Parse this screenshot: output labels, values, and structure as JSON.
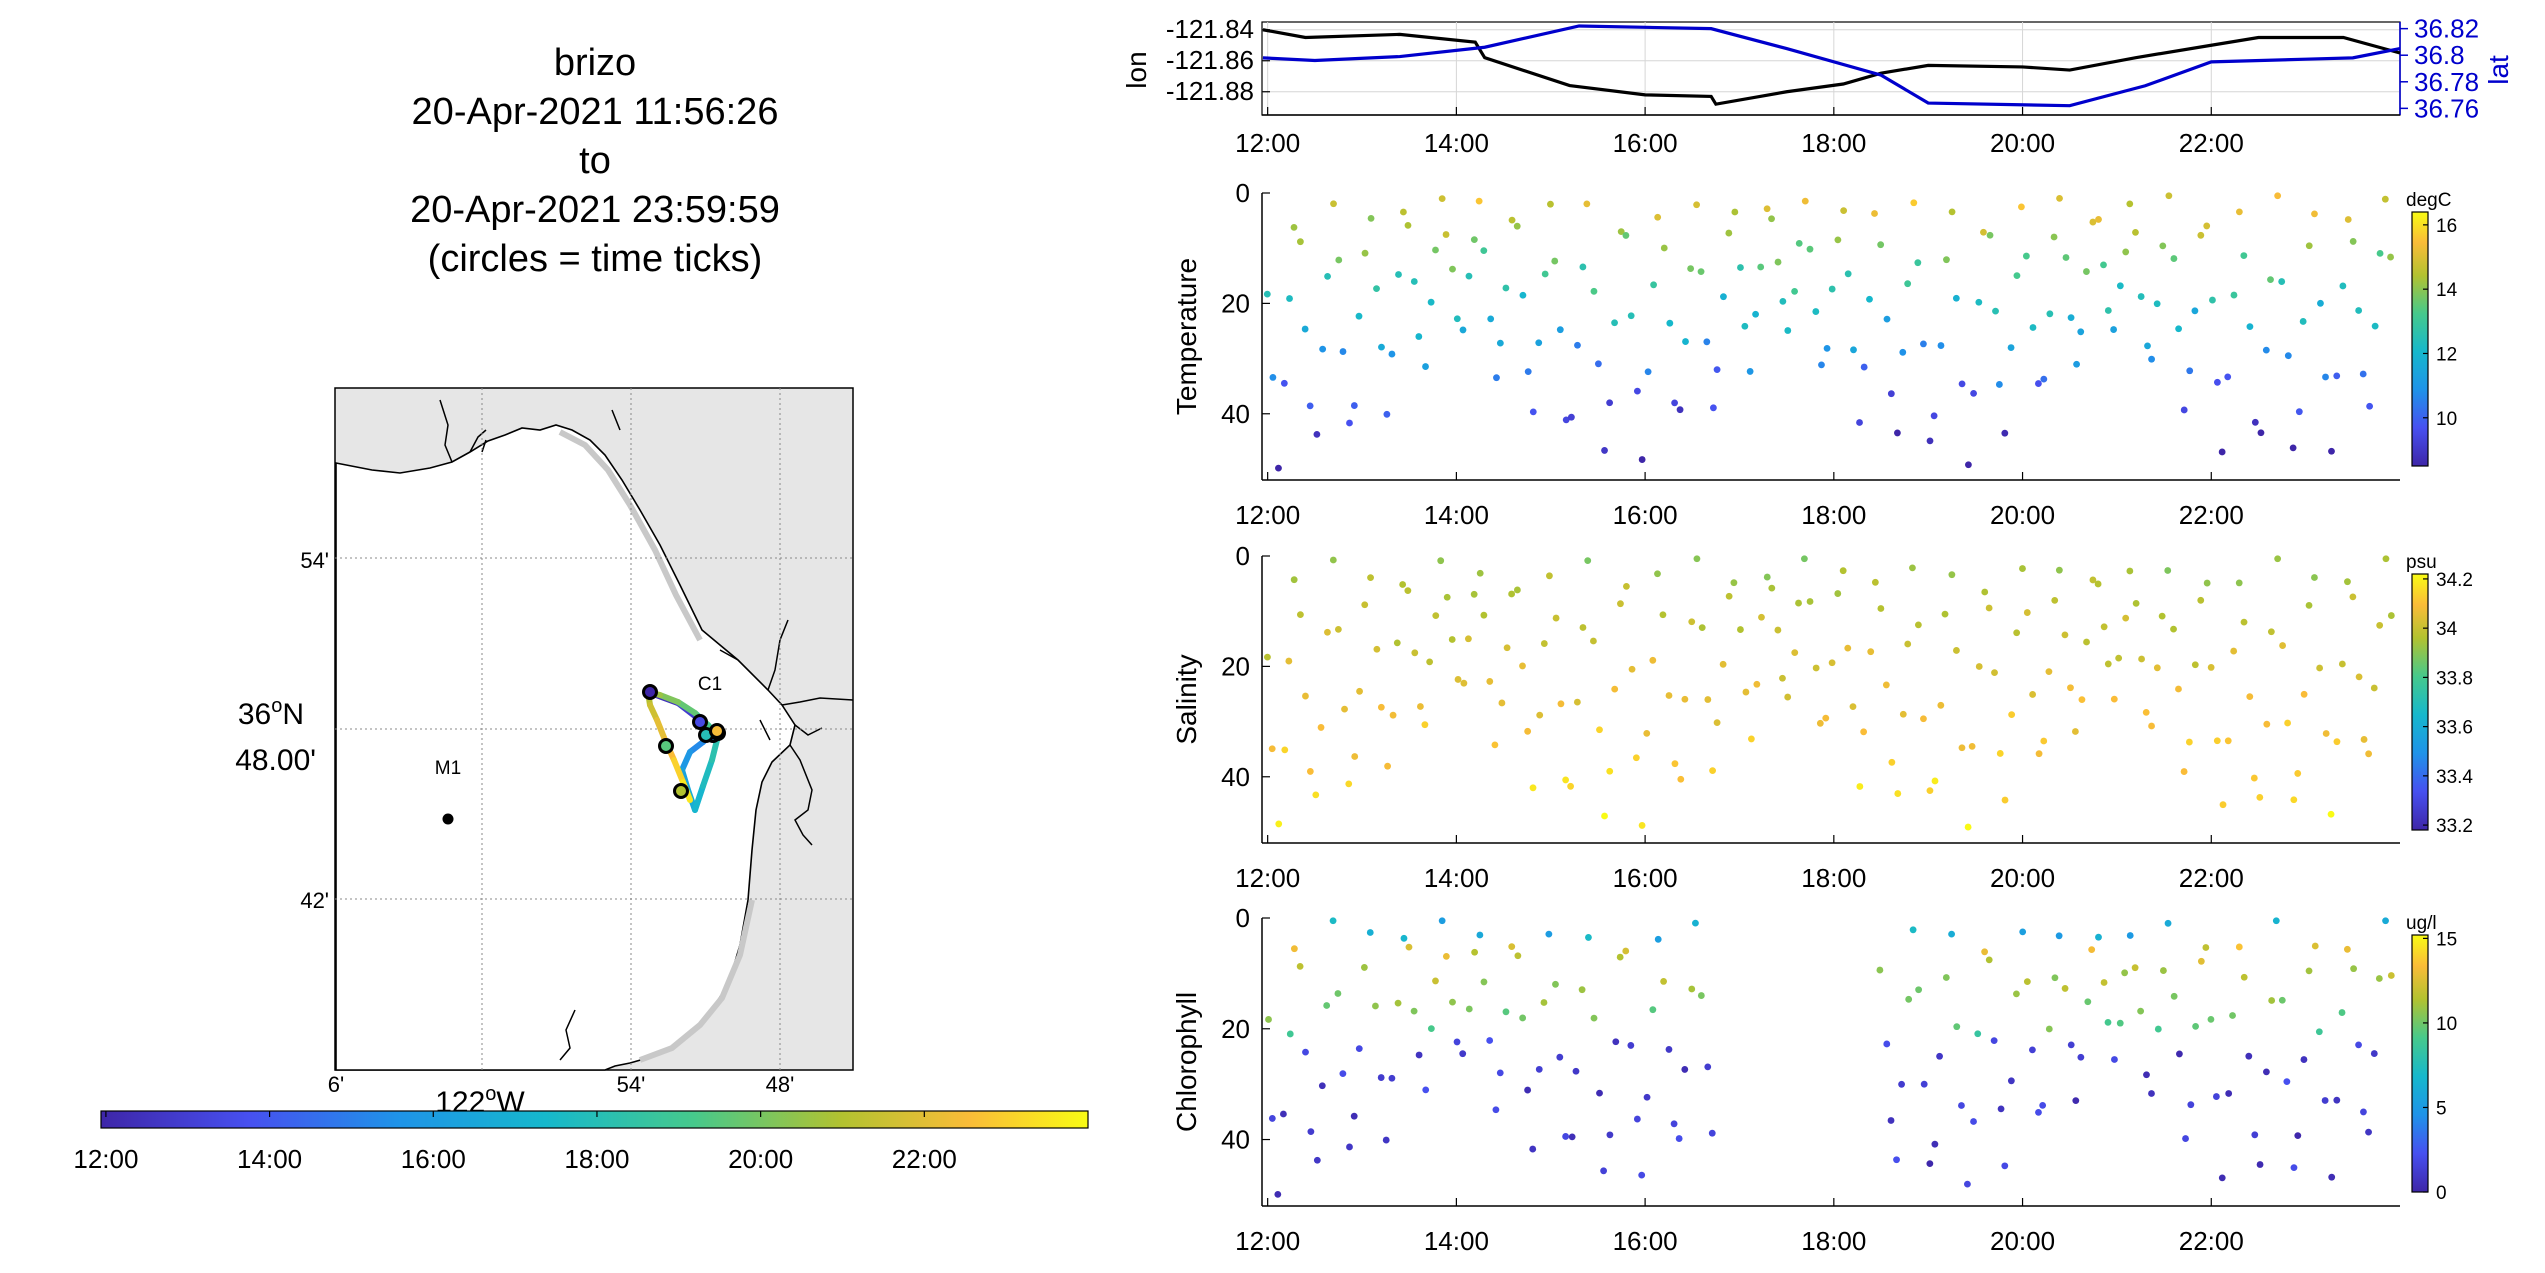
{
  "title": {
    "lines": [
      "brizo",
      "20-Apr-2021 11:56:26",
      "to",
      "20-Apr-2021 23:59:59",
      "(circles = time ticks)"
    ]
  },
  "map": {
    "lat_tick_labels": [
      "54'",
      "48.00'",
      "42'"
    ],
    "lat_degree_label": "36",
    "lat_degree_suffix": "N",
    "lon_tick_labels": [
      "6'",
      "54'",
      "48'"
    ],
    "lon_degree_label": "122",
    "lon_degree_suffix": "W",
    "stations": [
      {
        "name": "M1"
      },
      {
        "name": "C1"
      }
    ],
    "colors": {
      "land": "#e6e6e6",
      "water": "#ffffff",
      "coast": "#000000"
    }
  },
  "time_colorbar": {
    "tick_labels": [
      "12:00",
      "14:00",
      "16:00",
      "18:00",
      "20:00",
      "22:00"
    ]
  },
  "time_axis": {
    "tick_labels": [
      "12:00",
      "14:00",
      "16:00",
      "18:00",
      "20:00",
      "22:00"
    ],
    "range_hours": [
      11.94,
      24.0
    ]
  },
  "chart_data": [
    {
      "type": "line",
      "ylabel": "lon",
      "y2label": "lat",
      "yticks": [
        -121.84,
        -121.86,
        -121.88
      ],
      "ylim": [
        -121.895,
        -121.835
      ],
      "y2ticks": [
        36.82,
        36.8,
        36.78,
        36.76
      ],
      "y2lim": [
        36.755,
        36.825
      ],
      "series": [
        {
          "axis": "left",
          "color": "#000000",
          "points": [
            [
              11.95,
              -121.84
            ],
            [
              12.4,
              -121.845
            ],
            [
              13.4,
              -121.843
            ],
            [
              14.2,
              -121.848
            ],
            [
              14.3,
              -121.858
            ],
            [
              15.2,
              -121.876
            ],
            [
              16.0,
              -121.882
            ],
            [
              16.7,
              -121.883
            ],
            [
              16.75,
              -121.888
            ],
            [
              17.5,
              -121.88
            ],
            [
              18.1,
              -121.875
            ],
            [
              18.5,
              -121.868
            ],
            [
              19.0,
              -121.863
            ],
            [
              20.0,
              -121.864
            ],
            [
              20.5,
              -121.866
            ],
            [
              21.2,
              -121.858
            ],
            [
              22.0,
              -121.85
            ],
            [
              22.5,
              -121.845
            ],
            [
              23.4,
              -121.845
            ],
            [
              24.0,
              -121.855
            ]
          ]
        },
        {
          "axis": "right",
          "color": "#0000cc",
          "points": [
            [
              11.95,
              36.798
            ],
            [
              12.5,
              36.796
            ],
            [
              13.4,
              36.799
            ],
            [
              14.3,
              36.806
            ],
            [
              15.3,
              36.822
            ],
            [
              16.7,
              36.82
            ],
            [
              17.5,
              36.805
            ],
            [
              18.5,
              36.785
            ],
            [
              19.0,
              36.764
            ],
            [
              20.5,
              36.762
            ],
            [
              21.3,
              36.777
            ],
            [
              22.0,
              36.795
            ],
            [
              23.0,
              36.797
            ],
            [
              23.5,
              36.798
            ],
            [
              24.0,
              36.805
            ]
          ]
        }
      ]
    },
    {
      "type": "scatter",
      "ylabel": "Temperature",
      "ylim": [
        0,
        52
      ],
      "yticks": [
        0,
        20,
        40
      ],
      "colorbar": {
        "units": "degC",
        "range": [
          8.5,
          16.4
        ],
        "ticks": [
          10,
          12,
          14,
          16
        ]
      }
    },
    {
      "type": "scatter",
      "ylabel": "Salinity",
      "ylim": [
        0,
        52
      ],
      "yticks": [
        0,
        20,
        40
      ],
      "colorbar": {
        "units": "psu",
        "range": [
          33.18,
          34.22
        ],
        "ticks": [
          33.2,
          33.4,
          33.6,
          33.8,
          34,
          34.2
        ]
      }
    },
    {
      "type": "scatter",
      "ylabel": "Chlorophyll",
      "ylim": [
        0,
        52
      ],
      "yticks": [
        0,
        20,
        40
      ],
      "colorbar": {
        "units": "ug/l",
        "range": [
          0,
          15.2
        ],
        "ticks": [
          0,
          5,
          10,
          15
        ]
      }
    }
  ]
}
